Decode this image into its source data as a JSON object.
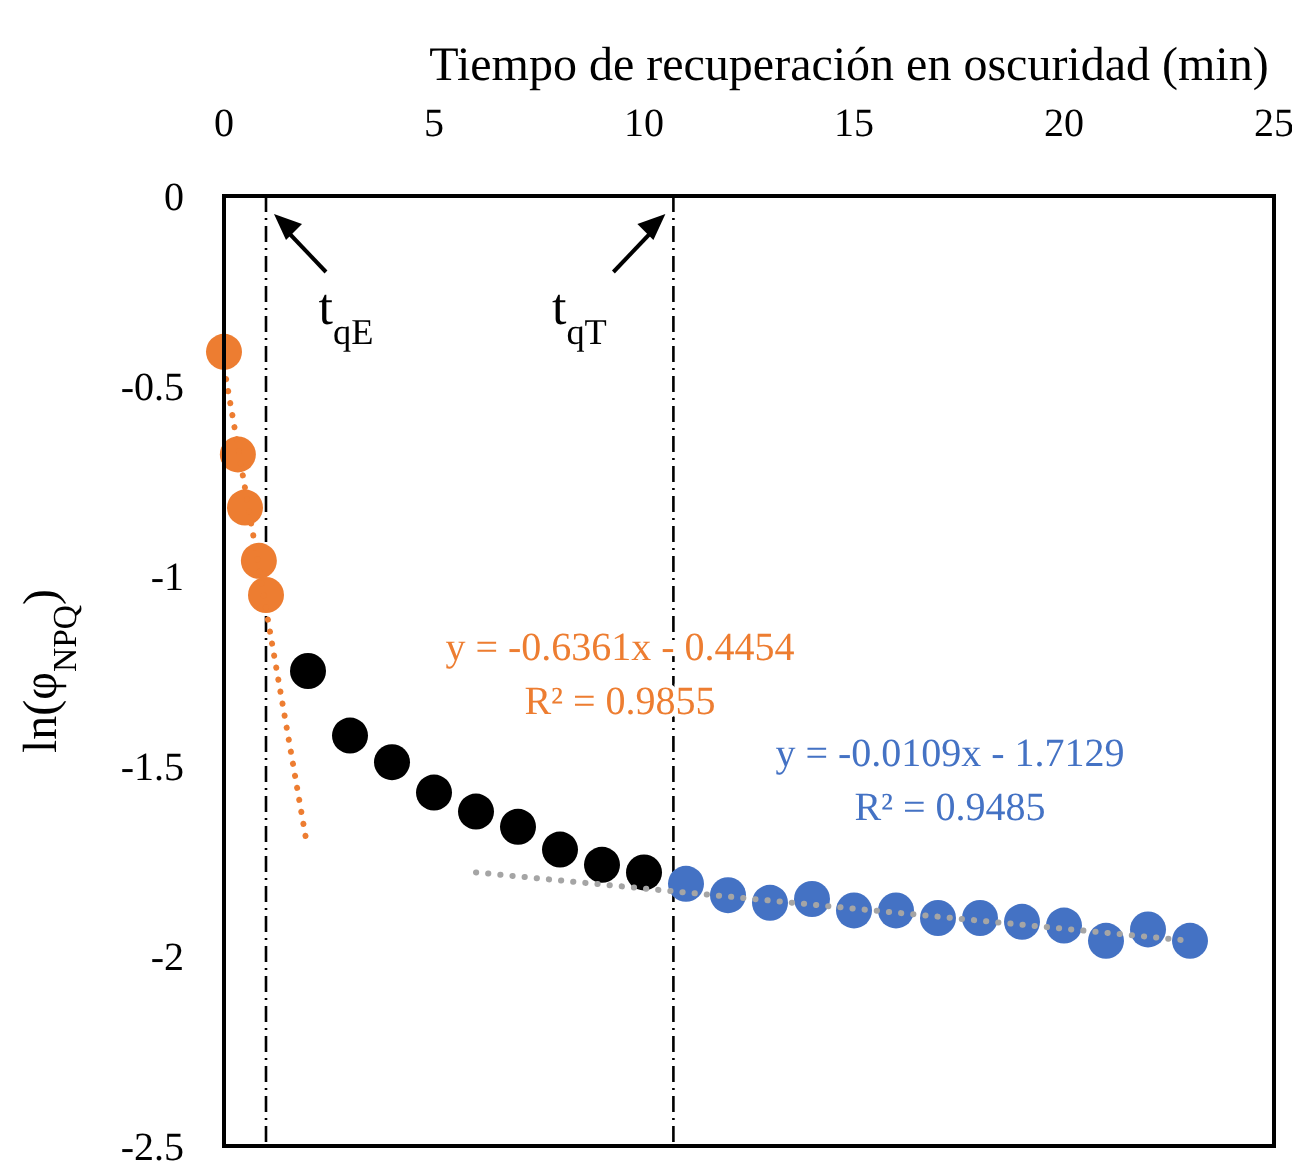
{
  "chart_data": {
    "type": "scatter",
    "xlabel": "Tiempo de recuperación en oscuridad (min)",
    "ylabel": "ln(φ$_{NPQ}$)",
    "xlim": [
      0,
      25
    ],
    "xticks": [
      0,
      5,
      10,
      15,
      20,
      25
    ],
    "ylim": [
      -2.5,
      0
    ],
    "yticks": [
      0,
      -0.5,
      -1,
      -1.5,
      -2,
      -2.5
    ],
    "grid": false,
    "marker": "circle",
    "series": [
      {
        "type": "scatter",
        "color": "#ed7d31",
        "x": [
          0,
          0.33,
          0.5,
          0.83,
          1
        ],
        "values": [
          -0.41,
          -0.68,
          -0.82,
          -0.96,
          -1.05
        ]
      },
      {
        "type": "scatter",
        "color": "#000000",
        "x": [
          2,
          3,
          4,
          5,
          6,
          7,
          8,
          9,
          10
        ],
        "values": [
          -1.25,
          -1.42,
          -1.49,
          -1.57,
          -1.62,
          -1.66,
          -1.72,
          -1.76,
          -1.78
        ]
      },
      {
        "type": "scatter",
        "color": "#4472c4",
        "x": [
          11,
          12,
          13,
          14,
          15,
          16,
          17,
          18,
          19,
          20,
          21,
          22,
          23
        ],
        "values": [
          -1.81,
          -1.84,
          -1.86,
          -1.85,
          -1.88,
          -1.88,
          -1.9,
          -1.9,
          -1.91,
          -1.92,
          -1.96,
          -1.93,
          -1.96
        ]
      },
      {
        "type": "line",
        "color": "#ed7d31",
        "marker": "none",
        "line_style": "dotted",
        "x": [
          0,
          1.95
        ],
        "values": [
          -0.45,
          -1.69
        ]
      },
      {
        "type": "line",
        "color": "#a5a5a5",
        "marker": "none",
        "line_style": "dotted",
        "x": [
          6,
          23
        ],
        "values": [
          -1.78,
          -1.96
        ]
      }
    ],
    "ref_lines": [
      {
        "axis": "x",
        "value": 1,
        "label": "t$_{qE}$",
        "line_style": "dashdot",
        "color": "#000000"
      },
      {
        "axis": "x",
        "value": 10.7,
        "label": "t$_{qT}$",
        "line_style": "dashdot",
        "color": "#000000"
      }
    ],
    "annotations": [
      "y = -0.6361x - 0.4454",
      "R² = 0.9855",
      "y = -0.0109x - 1.7129",
      "R² = 0.9485"
    ]
  }
}
